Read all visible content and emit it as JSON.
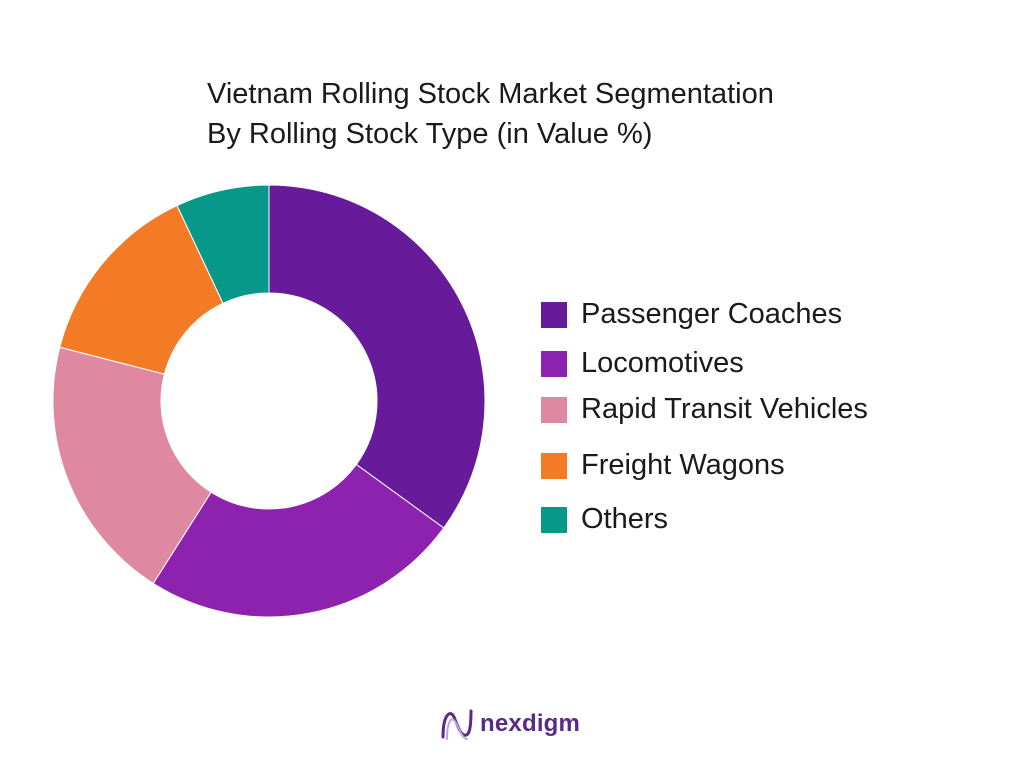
{
  "chart_data": {
    "type": "pie",
    "donut": true,
    "title_line1": "Vietnam Rolling Stock Market Segmentation",
    "title_line2": "By Rolling Stock Type (in Value %)",
    "categories": [
      "Passenger Coaches",
      "Locomotives",
      "Rapid Transit Vehicles",
      "Freight Wagons",
      "Others"
    ],
    "values": [
      35,
      24,
      20,
      14,
      7
    ],
    "colors": [
      "#671b9b",
      "#8c22ae",
      "#df88a1",
      "#f47b26",
      "#079889"
    ],
    "legend_position": "right"
  },
  "brand": {
    "name": "nexdigm",
    "color": "#5b2a86"
  }
}
